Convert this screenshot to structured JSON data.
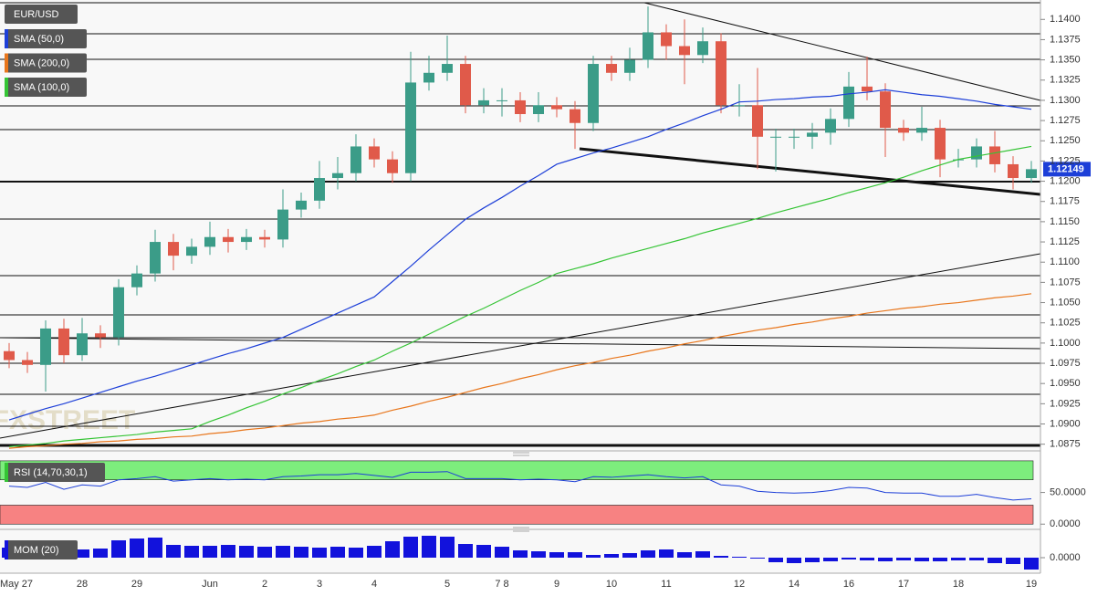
{
  "chart_data": [
    {
      "type": "candlestick",
      "title": "EUR/USD",
      "watermark": "FXSTREET",
      "categories": [
        "May 27",
        null,
        null,
        null,
        "28",
        null,
        null,
        "29",
        null,
        null,
        null,
        "Jun",
        null,
        null,
        "2",
        null,
        null,
        "3",
        null,
        null,
        "4",
        null,
        null,
        null,
        "5",
        null,
        null,
        "7 8",
        null,
        null,
        "9",
        null,
        null,
        "10",
        null,
        null,
        "11",
        null,
        null,
        null,
        "12",
        null,
        null,
        "14",
        null,
        null,
        "16",
        null,
        null,
        "17",
        null,
        null,
        "18",
        null,
        null,
        null,
        "19"
      ],
      "open": [
        1.099,
        1.0979,
        1.0973,
        1.1018,
        1.0985,
        1.1012,
        1.1007,
        1.1069,
        1.1086,
        1.1125,
        1.1108,
        1.1119,
        1.1131,
        1.1125,
        1.1131,
        1.1128,
        1.1165,
        1.1176,
        1.1204,
        1.121,
        1.1243,
        1.1227,
        1.121,
        1.1322,
        1.1334,
        1.1345,
        1.1294,
        1.13,
        1.13,
        1.1283,
        1.1294,
        1.1289,
        1.1272,
        1.1345,
        1.1334,
        1.135,
        1.1384,
        1.1367,
        1.1356,
        1.1373,
        1.1294,
        1.1294,
        1.1255,
        1.1255,
        1.1255,
        1.126,
        1.1277,
        1.1317,
        1.1311,
        1.1266,
        1.126,
        1.1266,
        1.1227,
        1.1227,
        1.1243,
        1.1221,
        1.1204
      ],
      "high": [
        1.1,
        1.0989,
        1.1028,
        1.103,
        1.1031,
        1.1022,
        1.1079,
        1.1096,
        1.114,
        1.1135,
        1.1129,
        1.115,
        1.1141,
        1.1141,
        1.114,
        1.119,
        1.1186,
        1.1225,
        1.123,
        1.1258,
        1.1253,
        1.1237,
        1.136,
        1.1355,
        1.138,
        1.1355,
        1.1315,
        1.1315,
        1.131,
        1.131,
        1.1304,
        1.1299,
        1.1355,
        1.1355,
        1.1365,
        1.1416,
        1.1394,
        1.14,
        1.139,
        1.1383,
        1.132,
        1.134,
        1.1265,
        1.1265,
        1.1272,
        1.129,
        1.1335,
        1.1354,
        1.1321,
        1.1276,
        1.1292,
        1.1276,
        1.124,
        1.1253,
        1.1262,
        1.1231,
        1.1225
      ],
      "low": [
        1.0969,
        1.0963,
        1.094,
        1.0975,
        1.0978,
        1.0994,
        1.0997,
        1.1059,
        1.1076,
        1.109,
        1.1098,
        1.1109,
        1.1112,
        1.1115,
        1.1118,
        1.1118,
        1.1155,
        1.1166,
        1.119,
        1.12,
        1.1217,
        1.1198,
        1.12,
        1.1312,
        1.1324,
        1.1284,
        1.1284,
        1.128,
        1.1273,
        1.1273,
        1.1279,
        1.124,
        1.1262,
        1.1324,
        1.1324,
        1.134,
        1.135,
        1.132,
        1.1346,
        1.1284,
        1.128,
        1.1215,
        1.1212,
        1.124,
        1.124,
        1.1245,
        1.1267,
        1.13,
        1.123,
        1.125,
        1.125,
        1.1205,
        1.1217,
        1.1217,
        1.1211,
        1.119,
        1.1198
      ],
      "close": [
        1.0979,
        1.0973,
        1.1018,
        1.0985,
        1.1012,
        1.1007,
        1.1069,
        1.1086,
        1.1125,
        1.1108,
        1.1119,
        1.1131,
        1.1125,
        1.1131,
        1.1128,
        1.1165,
        1.1176,
        1.1204,
        1.121,
        1.1243,
        1.1227,
        1.121,
        1.1322,
        1.1334,
        1.1345,
        1.1294,
        1.13,
        1.13,
        1.1283,
        1.1294,
        1.1289,
        1.1272,
        1.1345,
        1.1334,
        1.135,
        1.1384,
        1.1367,
        1.1356,
        1.1373,
        1.1294,
        1.1294,
        1.1255,
        1.1255,
        1.1255,
        1.126,
        1.1277,
        1.1317,
        1.1311,
        1.1266,
        1.126,
        1.1266,
        1.1227,
        1.1227,
        1.1243,
        1.1221,
        1.1204,
        1.12149
      ],
      "up_color": "#3b9c88",
      "down_color": "#e05a4a",
      "series": [
        {
          "name": "SMA (50,0)",
          "color": "#1d3fd8",
          "values": [
            1.0905,
            1.0912,
            1.0919,
            1.0925,
            1.0932,
            1.0939,
            1.0946,
            1.0953,
            1.0959,
            1.0966,
            1.0973,
            1.098,
            1.0987,
            1.0993,
            1.1,
            1.1007,
            1.1017,
            1.1027,
            1.1037,
            1.1047,
            1.1057,
            1.1076,
            1.1095,
            1.1115,
            1.1134,
            1.1153,
            1.1167,
            1.118,
            1.1194,
            1.1207,
            1.1221,
            1.1228,
            1.1235,
            1.1241,
            1.1248,
            1.1255,
            1.1264,
            1.1272,
            1.1281,
            1.1289,
            1.1298,
            1.1299,
            1.1301,
            1.1302,
            1.1304,
            1.1305,
            1.1308,
            1.131,
            1.1313,
            1.131,
            1.1307,
            1.1305,
            1.1302,
            1.1299,
            1.1295,
            1.1292,
            1.1289
          ]
        },
        {
          "name": "SMA (200,0)",
          "color": "#e8761c",
          "values": [
            1.087,
            1.0872,
            1.0873,
            1.0875,
            1.0876,
            1.0878,
            1.0879,
            1.0881,
            1.0882,
            1.0884,
            1.0885,
            1.0888,
            1.089,
            1.0893,
            1.0895,
            1.0898,
            1.0901,
            1.0903,
            1.0906,
            1.0908,
            1.0911,
            1.0917,
            1.0922,
            1.0928,
            1.0933,
            1.0939,
            1.0945,
            1.095,
            1.0956,
            1.0961,
            1.0967,
            1.0972,
            1.0976,
            1.0981,
            1.0985,
            1.099,
            1.0994,
            1.0999,
            1.1003,
            1.1008,
            1.1012,
            1.1016,
            1.1019,
            1.1023,
            1.1026,
            1.103,
            1.1033,
            1.1037,
            1.104,
            1.1043,
            1.1045,
            1.1048,
            1.105,
            1.1053,
            1.1056,
            1.1058,
            1.1061
          ]
        },
        {
          "name": "SMA (100,0)",
          "color": "#35c435",
          "values": [
            1.0872,
            1.0874,
            1.0876,
            1.0879,
            1.0881,
            1.0883,
            1.0885,
            1.0887,
            1.089,
            1.0892,
            1.0894,
            1.0903,
            1.0911,
            1.092,
            1.0928,
            1.0937,
            1.0945,
            1.0954,
            1.0962,
            1.0971,
            1.0979,
            1.099,
            1.1,
            1.1011,
            1.1022,
            1.1033,
            1.1043,
            1.1054,
            1.1065,
            1.1075,
            1.1086,
            1.1092,
            1.1098,
            1.1105,
            1.1111,
            1.1117,
            1.1123,
            1.1129,
            1.1136,
            1.1142,
            1.1148,
            1.1154,
            1.1161,
            1.1167,
            1.1173,
            1.1179,
            1.1186,
            1.1192,
            1.1198,
            1.1205,
            1.1213,
            1.122,
            1.1227,
            1.1231,
            1.1235,
            1.1239,
            1.1243
          ]
        }
      ],
      "ylim": [
        1.0869,
        1.1424
      ],
      "yticks": [
        {
          "value": 1.0875,
          "label": "1.0875"
        },
        {
          "value": 1.09,
          "label": "1.0900"
        },
        {
          "value": 1.0925,
          "label": "1.0925"
        },
        {
          "value": 1.095,
          "label": "1.0950"
        },
        {
          "value": 1.0975,
          "label": "1.0975"
        },
        {
          "value": 1.1,
          "label": "1.1000"
        },
        {
          "value": 1.1025,
          "label": "1.1025"
        },
        {
          "value": 1.105,
          "label": "1.1050"
        },
        {
          "value": 1.1075,
          "label": "1.1075"
        },
        {
          "value": 1.11,
          "label": "1.1100"
        },
        {
          "value": 1.1125,
          "label": "1.1125"
        },
        {
          "value": 1.115,
          "label": "1.1150"
        },
        {
          "value": 1.1175,
          "label": "1.1175"
        },
        {
          "value": 1.12,
          "label": "1.1200"
        },
        {
          "value": 1.1225,
          "label": "1.1225"
        },
        {
          "value": 1.125,
          "label": "1.1250"
        },
        {
          "value": 1.1275,
          "label": "1.1275"
        },
        {
          "value": 1.13,
          "label": "1.1300"
        },
        {
          "value": 1.1325,
          "label": "1.1325"
        },
        {
          "value": 1.135,
          "label": "1.1350"
        },
        {
          "value": 1.1375,
          "label": "1.1375"
        },
        {
          "value": 1.14,
          "label": "1.1400"
        }
      ]
    },
    {
      "type": "line",
      "title": "RSI (14,70,30,1)",
      "color": "#1d3fd8",
      "values": [
        60,
        58,
        66,
        55,
        62,
        60,
        70,
        72,
        75,
        68,
        70,
        72,
        70,
        71,
        70,
        75,
        76,
        78,
        78,
        80,
        77,
        74,
        82,
        82,
        83,
        72,
        72,
        72,
        70,
        71,
        70,
        67,
        75,
        74,
        76,
        78,
        75,
        73,
        75,
        62,
        60,
        52,
        50,
        49,
        50,
        53,
        58,
        57,
        50,
        49,
        49,
        44,
        44,
        47,
        42,
        38,
        40
      ],
      "bands": [
        {
          "range": [
            70,
            100
          ],
          "color": "#7ded7d"
        },
        {
          "range": [
            0,
            30
          ],
          "color": "#f78282"
        }
      ],
      "ylim": [
        -5.4,
        111.4
      ],
      "yticks": [
        {
          "value": 50,
          "label": "50.0000"
        },
        {
          "value": 0,
          "label": "0.0000"
        }
      ]
    },
    {
      "type": "bar",
      "title": "MOM (20)",
      "color": "#1212dc",
      "values": [
        0.0011,
        0.0012,
        0.0011,
        0.0008,
        0.0009,
        0.001,
        0.0019,
        0.0021,
        0.0022,
        0.0014,
        0.0013,
        0.0013,
        0.0014,
        0.0013,
        0.0012,
        0.0013,
        0.0012,
        0.0011,
        0.0012,
        0.0011,
        0.0013,
        0.0018,
        0.0023,
        0.0024,
        0.0023,
        0.0015,
        0.0014,
        0.0012,
        0.0008,
        0.0007,
        0.0006,
        0.0006,
        0.0003,
        0.0004,
        0.0005,
        0.0008,
        0.0009,
        0.0006,
        0.0007,
        0.0002,
        0.0001,
        -0.0001,
        -0.0005,
        -0.0006,
        -0.0005,
        -0.0004,
        -0.0002,
        -0.0003,
        -0.0004,
        -0.0003,
        -0.0004,
        -0.0004,
        -0.0003,
        -0.0003,
        -0.0006,
        -0.0007,
        -0.0013
      ],
      "ylim": [
        -0.0017,
        0.0029
      ],
      "yticks": [
        {
          "value": 0,
          "label": "0.0000"
        }
      ]
    }
  ]
}
